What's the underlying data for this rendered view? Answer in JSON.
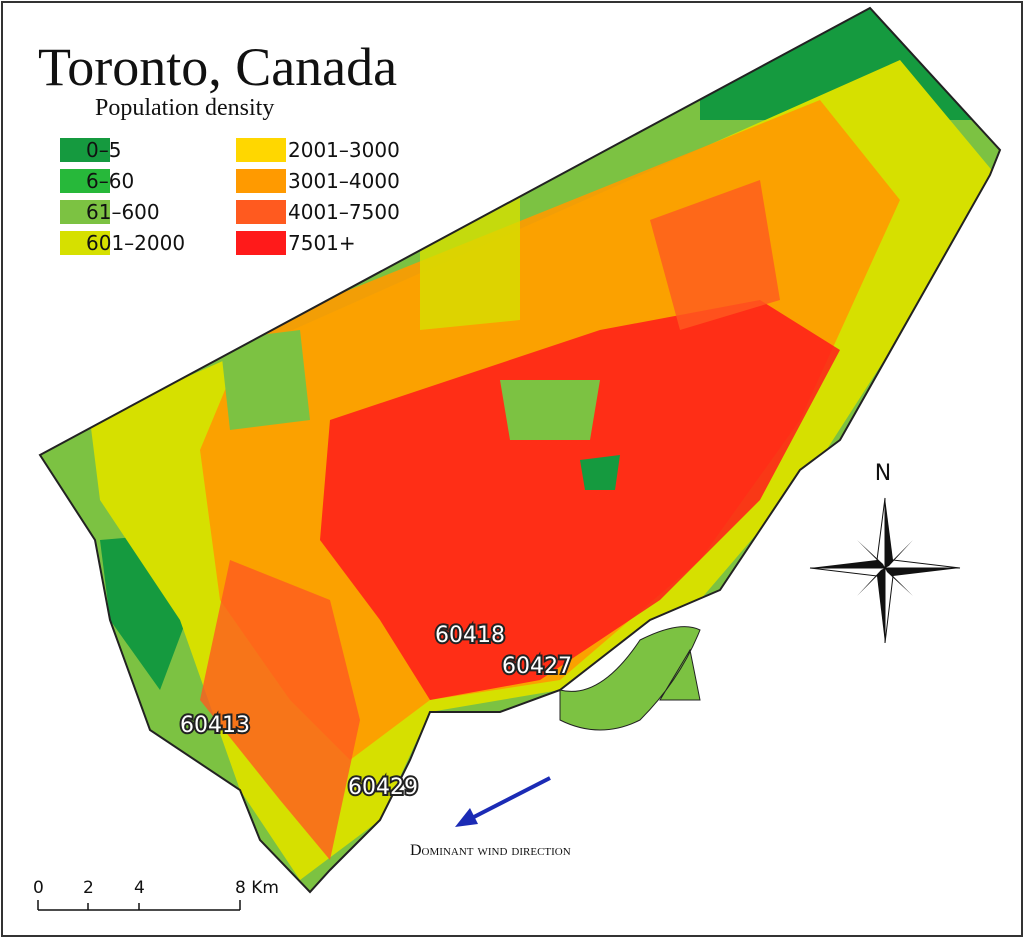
{
  "header": {
    "title": "Toronto, Canada",
    "subtitle": "Population density"
  },
  "legend": {
    "items": [
      {
        "label": "0–5",
        "color": "#159a3f"
      },
      {
        "label": "6–60",
        "color": "#27b83a"
      },
      {
        "label": "61–600",
        "color": "#7cc242"
      },
      {
        "label": "601–2000",
        "color": "#d6e000"
      },
      {
        "label": "2001–3000",
        "color": "#ffd700"
      },
      {
        "label": "3001–4000",
        "color": "#ff9a00"
      },
      {
        "label": "4001–7500",
        "color": "#ff5a1f"
      },
      {
        "label": "7501+",
        "color": "#ff1a1a"
      }
    ]
  },
  "stations": [
    "60418",
    "60427",
    "60413",
    "60429"
  ],
  "wind": {
    "label": "Dominant wind direction"
  },
  "compass": {
    "label": "N"
  },
  "scale": {
    "labels": [
      "0",
      "2",
      "4",
      "8 Km"
    ]
  }
}
